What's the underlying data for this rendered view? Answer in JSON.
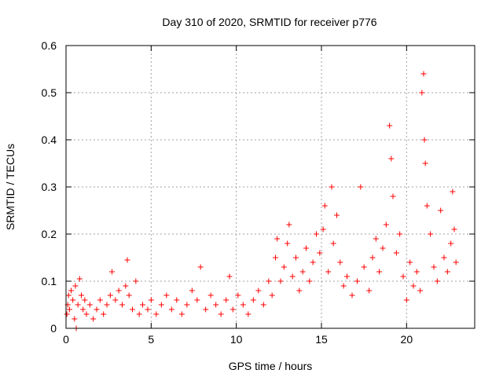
{
  "chart_data": {
    "type": "scatter",
    "title": "Day 310 of 2020, SRMTID for receiver p776",
    "xlabel": "GPS time / hours",
    "ylabel": "SRMTID / TECUs",
    "xlim": [
      0,
      24
    ],
    "ylim": [
      0,
      0.6
    ],
    "x_ticks": [
      {
        "value": 0,
        "label": "0"
      },
      {
        "value": 5,
        "label": "5"
      },
      {
        "value": 10,
        "label": "10"
      },
      {
        "value": 15,
        "label": "15"
      },
      {
        "value": 20,
        "label": "20"
      }
    ],
    "y_ticks": [
      {
        "value": 0,
        "label": "0"
      },
      {
        "value": 0.1,
        "label": "0.1"
      },
      {
        "value": 0.2,
        "label": "0.2"
      },
      {
        "value": 0.3,
        "label": "0.3"
      },
      {
        "value": 0.4,
        "label": "0.4"
      },
      {
        "value": 0.5,
        "label": "0.5"
      },
      {
        "value": 0.6,
        "label": "0.6"
      }
    ],
    "grid": true,
    "marker": "plus",
    "marker_color": "#ff0000",
    "series": [
      {
        "name": "SRMTID",
        "points": [
          [
            0.05,
            0.03
          ],
          [
            0.1,
            0.05
          ],
          [
            0.15,
            0.07
          ],
          [
            0.2,
            0.04
          ],
          [
            0.3,
            0.08
          ],
          [
            0.4,
            0.06
          ],
          [
            0.5,
            0.02
          ],
          [
            0.55,
            0.09
          ],
          [
            0.6,
            0.0
          ],
          [
            0.7,
            0.05
          ],
          [
            0.8,
            0.105
          ],
          [
            0.9,
            0.07
          ],
          [
            1.0,
            0.04
          ],
          [
            1.1,
            0.06
          ],
          [
            1.2,
            0.03
          ],
          [
            1.4,
            0.05
          ],
          [
            1.6,
            0.02
          ],
          [
            1.8,
            0.04
          ],
          [
            2.0,
            0.06
          ],
          [
            2.2,
            0.03
          ],
          [
            2.4,
            0.05
          ],
          [
            2.6,
            0.07
          ],
          [
            2.7,
            0.12
          ],
          [
            2.9,
            0.06
          ],
          [
            3.1,
            0.08
          ],
          [
            3.3,
            0.05
          ],
          [
            3.5,
            0.09
          ],
          [
            3.6,
            0.145
          ],
          [
            3.7,
            0.07
          ],
          [
            3.9,
            0.04
          ],
          [
            4.1,
            0.1
          ],
          [
            4.3,
            0.03
          ],
          [
            4.5,
            0.05
          ],
          [
            4.8,
            0.04
          ],
          [
            5.0,
            0.06
          ],
          [
            5.3,
            0.03
          ],
          [
            5.6,
            0.05
          ],
          [
            5.9,
            0.07
          ],
          [
            6.2,
            0.04
          ],
          [
            6.5,
            0.06
          ],
          [
            6.8,
            0.03
          ],
          [
            7.1,
            0.05
          ],
          [
            7.4,
            0.08
          ],
          [
            7.7,
            0.06
          ],
          [
            7.9,
            0.13
          ],
          [
            8.2,
            0.04
          ],
          [
            8.5,
            0.07
          ],
          [
            8.8,
            0.05
          ],
          [
            9.1,
            0.03
          ],
          [
            9.4,
            0.06
          ],
          [
            9.6,
            0.11
          ],
          [
            9.8,
            0.04
          ],
          [
            10.1,
            0.07
          ],
          [
            10.4,
            0.05
          ],
          [
            10.7,
            0.03
          ],
          [
            11.0,
            0.06
          ],
          [
            11.3,
            0.08
          ],
          [
            11.6,
            0.05
          ],
          [
            11.9,
            0.1
          ],
          [
            12.1,
            0.07
          ],
          [
            12.3,
            0.15
          ],
          [
            12.4,
            0.19
          ],
          [
            12.6,
            0.1
          ],
          [
            12.8,
            0.13
          ],
          [
            13.0,
            0.18
          ],
          [
            13.1,
            0.22
          ],
          [
            13.3,
            0.11
          ],
          [
            13.5,
            0.15
          ],
          [
            13.7,
            0.08
          ],
          [
            13.9,
            0.12
          ],
          [
            14.1,
            0.17
          ],
          [
            14.3,
            0.1
          ],
          [
            14.5,
            0.14
          ],
          [
            14.7,
            0.2
          ],
          [
            14.9,
            0.16
          ],
          [
            15.1,
            0.21
          ],
          [
            15.2,
            0.26
          ],
          [
            15.4,
            0.12
          ],
          [
            15.6,
            0.3
          ],
          [
            15.7,
            0.18
          ],
          [
            15.9,
            0.24
          ],
          [
            16.1,
            0.14
          ],
          [
            16.3,
            0.09
          ],
          [
            16.5,
            0.11
          ],
          [
            16.8,
            0.07
          ],
          [
            17.1,
            0.1
          ],
          [
            17.3,
            0.3
          ],
          [
            17.5,
            0.13
          ],
          [
            17.8,
            0.08
          ],
          [
            18.0,
            0.15
          ],
          [
            18.2,
            0.19
          ],
          [
            18.4,
            0.12
          ],
          [
            18.6,
            0.17
          ],
          [
            18.8,
            0.22
          ],
          [
            19.0,
            0.43
          ],
          [
            19.1,
            0.36
          ],
          [
            19.2,
            0.28
          ],
          [
            19.4,
            0.16
          ],
          [
            19.6,
            0.2
          ],
          [
            19.8,
            0.11
          ],
          [
            20.0,
            0.06
          ],
          [
            20.2,
            0.14
          ],
          [
            20.4,
            0.09
          ],
          [
            20.6,
            0.12
          ],
          [
            20.8,
            0.08
          ],
          [
            20.9,
            0.5
          ],
          [
            21.0,
            0.54
          ],
          [
            21.05,
            0.4
          ],
          [
            21.1,
            0.35
          ],
          [
            21.2,
            0.26
          ],
          [
            21.4,
            0.2
          ],
          [
            21.6,
            0.13
          ],
          [
            21.8,
            0.1
          ],
          [
            22.0,
            0.25
          ],
          [
            22.2,
            0.15
          ],
          [
            22.4,
            0.12
          ],
          [
            22.6,
            0.18
          ],
          [
            22.7,
            0.29
          ],
          [
            22.8,
            0.21
          ],
          [
            22.9,
            0.14
          ]
        ]
      }
    ]
  }
}
